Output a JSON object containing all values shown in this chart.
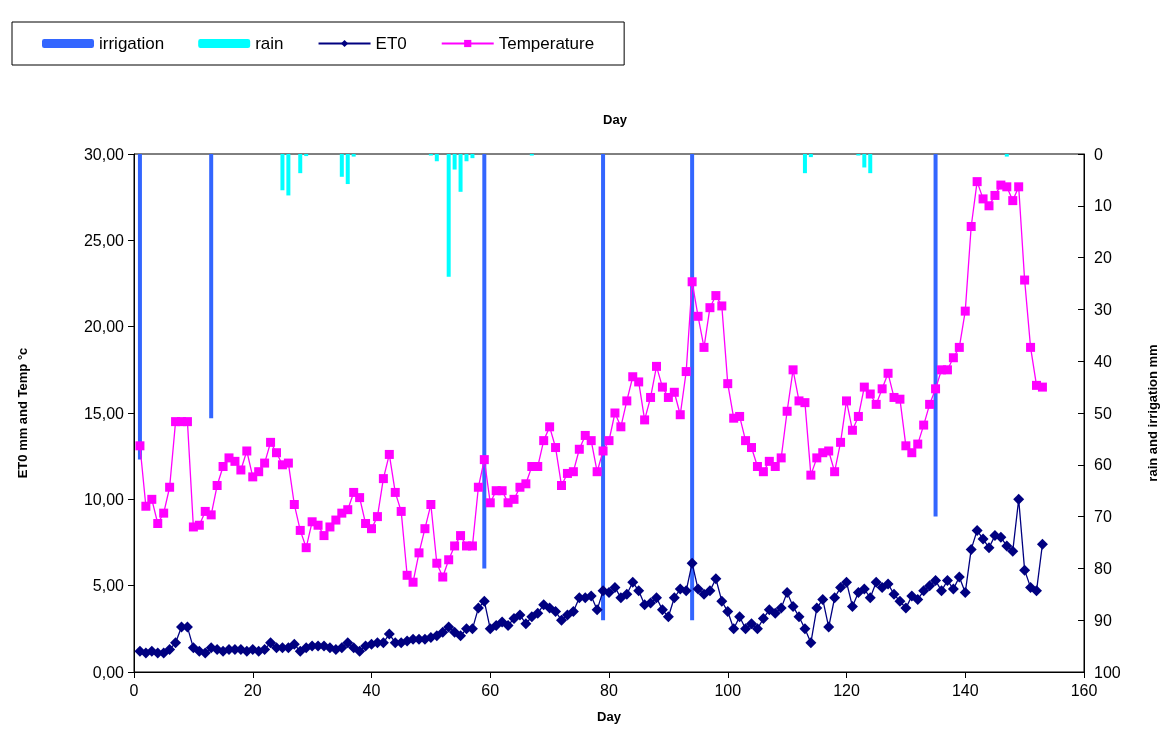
{
  "chart_data": {
    "type": "line",
    "title": "Day",
    "xlabel": "Day",
    "ylabel": "ET0 mm and Temp °c",
    "y2label": "rain and irrigation mm",
    "legend": "top left",
    "xlim": [
      0,
      160
    ],
    "xticks": [
      0,
      20,
      40,
      60,
      80,
      100,
      120,
      140,
      160
    ],
    "ylim": [
      0,
      30
    ],
    "yticks": [
      {
        "value": 0,
        "label": "0,00"
      },
      {
        "value": 5,
        "label": "5,00"
      },
      {
        "value": 10,
        "label": "10,00"
      },
      {
        "value": 15,
        "label": "15,00"
      },
      {
        "value": 20,
        "label": "20,00"
      },
      {
        "value": 25,
        "label": "25,00"
      },
      {
        "value": 30,
        "label": "30,00"
      }
    ],
    "y2lim": [
      100,
      0
    ],
    "y2ticks": [
      0,
      10,
      20,
      30,
      40,
      50,
      60,
      70,
      80,
      90,
      100
    ],
    "x": [
      1,
      2,
      3,
      4,
      5,
      6,
      7,
      8,
      9,
      10,
      11,
      12,
      13,
      14,
      15,
      16,
      17,
      18,
      19,
      20,
      21,
      22,
      23,
      24,
      25,
      26,
      27,
      28,
      29,
      30,
      31,
      32,
      33,
      34,
      35,
      36,
      37,
      38,
      39,
      40,
      41,
      42,
      43,
      44,
      45,
      46,
      47,
      48,
      49,
      50,
      51,
      52,
      53,
      54,
      55,
      56,
      57,
      58,
      59,
      60,
      61,
      62,
      63,
      64,
      65,
      66,
      67,
      68,
      69,
      70,
      71,
      72,
      73,
      74,
      75,
      76,
      77,
      78,
      79,
      80,
      81,
      82,
      83,
      84,
      85,
      86,
      87,
      88,
      89,
      90,
      91,
      92,
      93,
      94,
      95,
      96,
      97,
      98,
      99,
      100,
      101,
      102,
      103,
      104,
      105,
      106,
      107,
      108,
      109,
      110,
      111,
      112,
      113,
      114,
      115,
      116,
      117,
      118,
      119,
      120,
      121,
      122,
      123,
      124,
      125,
      126,
      127,
      128,
      129,
      130,
      131,
      132,
      133,
      134,
      135,
      136,
      137,
      138,
      139,
      140,
      141,
      142,
      143,
      144,
      145,
      146,
      147,
      148,
      149,
      150,
      151,
      152,
      153
    ],
    "series": [
      {
        "name": "irrigation",
        "type": "bar",
        "axis": "y2",
        "color": "#3366ff",
        "x": [
          1,
          13,
          59,
          79,
          94,
          135
        ],
        "values": [
          59,
          51,
          80,
          90,
          90,
          70
        ]
      },
      {
        "name": "rain",
        "type": "bar",
        "axis": "y2",
        "color": "#00ffff",
        "x": [
          25,
          26,
          28,
          29,
          35,
          36,
          37,
          50,
          51,
          53,
          54,
          55,
          56,
          57,
          67,
          113,
          114,
          122,
          123,
          124,
          147
        ],
        "values": [
          7,
          8,
          3.7,
          0.4,
          4.4,
          5.8,
          0.5,
          0.3,
          1.4,
          23.7,
          3,
          7.3,
          1.4,
          0.8,
          0.3,
          3.7,
          0.6,
          0.3,
          2.6,
          3.7,
          0.5
        ]
      },
      {
        "name": "ET0",
        "color": "#000080",
        "marker": "diamond",
        "values": [
          1.2,
          1.1,
          1.2,
          1.1,
          1.1,
          1.3,
          1.7,
          2.6,
          2.6,
          1.4,
          1.2,
          1.1,
          1.4,
          1.3,
          1.2,
          1.3,
          1.3,
          1.3,
          1.2,
          1.3,
          1.2,
          1.3,
          1.7,
          1.4,
          1.4,
          1.4,
          1.6,
          1.2,
          1.4,
          1.5,
          1.5,
          1.5,
          1.4,
          1.3,
          1.4,
          1.7,
          1.4,
          1.2,
          1.5,
          1.6,
          1.7,
          1.7,
          2.2,
          1.7,
          1.7,
          1.8,
          1.9,
          1.9,
          1.9,
          2.0,
          2.1,
          2.3,
          2.6,
          2.3,
          2.1,
          2.5,
          2.5,
          3.7,
          4.1,
          2.5,
          2.7,
          2.9,
          2.7,
          3.1,
          3.3,
          2.8,
          3.2,
          3.4,
          3.9,
          3.7,
          3.5,
          3.0,
          3.3,
          3.5,
          4.3,
          4.3,
          4.4,
          3.6,
          4.7,
          4.6,
          4.9,
          4.3,
          4.5,
          5.2,
          4.7,
          3.9,
          4.0,
          4.3,
          3.6,
          3.2,
          4.3,
          4.8,
          4.7,
          6.3,
          4.8,
          4.5,
          4.7,
          5.4,
          4.1,
          3.5,
          2.5,
          3.2,
          2.5,
          2.8,
          2.5,
          3.1,
          3.6,
          3.4,
          3.7,
          4.6,
          3.8,
          3.2,
          2.5,
          1.7,
          3.7,
          4.2,
          2.6,
          4.3,
          4.9,
          5.2,
          3.8,
          4.6,
          4.8,
          4.3,
          5.2,
          4.9,
          5.1,
          4.5,
          4.1,
          3.7,
          4.4,
          4.2,
          4.7,
          5.0,
          5.3,
          4.7,
          5.3,
          4.8,
          5.5,
          4.6,
          7.1,
          8.2,
          7.7,
          7.2,
          7.9,
          7.8,
          7.3,
          7.0,
          10.0,
          5.9,
          4.9,
          4.7,
          7.4
        ]
      },
      {
        "name": "Temperature",
        "color": "#ff00ff",
        "marker": "square",
        "values": [
          13.1,
          9.6,
          10.0,
          8.6,
          9.2,
          10.7,
          14.5,
          14.5,
          14.5,
          8.4,
          8.5,
          9.3,
          9.1,
          10.8,
          11.9,
          12.4,
          12.2,
          11.7,
          12.8,
          11.3,
          11.6,
          12.1,
          13.3,
          12.7,
          12.0,
          12.1,
          9.7,
          8.2,
          7.2,
          8.7,
          8.5,
          7.9,
          8.4,
          8.8,
          9.2,
          9.4,
          10.4,
          10.1,
          8.6,
          8.3,
          9.0,
          11.2,
          12.6,
          10.4,
          9.3,
          5.6,
          5.2,
          6.9,
          8.3,
          9.7,
          6.3,
          5.5,
          6.5,
          7.3,
          7.9,
          7.3,
          7.3,
          10.7,
          12.3,
          9.8,
          10.5,
          10.5,
          9.8,
          10.0,
          10.7,
          10.9,
          11.9,
          11.9,
          13.4,
          14.2,
          13.0,
          10.8,
          11.5,
          11.6,
          12.9,
          13.7,
          13.4,
          11.6,
          12.8,
          13.4,
          15.0,
          14.2,
          15.7,
          17.1,
          16.8,
          14.6,
          15.9,
          17.7,
          16.5,
          15.9,
          16.2,
          14.9,
          17.4,
          22.6,
          20.6,
          18.8,
          21.1,
          21.8,
          21.2,
          16.7,
          14.7,
          14.8,
          13.4,
          13.0,
          11.9,
          11.6,
          12.2,
          11.9,
          12.4,
          15.1,
          17.5,
          15.7,
          15.6,
          11.4,
          12.4,
          12.7,
          12.8,
          11.6,
          13.3,
          15.7,
          14.0,
          14.8,
          16.5,
          16.1,
          15.5,
          16.4,
          17.3,
          15.9,
          15.8,
          13.1,
          12.7,
          13.2,
          14.3,
          15.5,
          16.4,
          17.5,
          17.5,
          18.2,
          18.8,
          20.9,
          25.8,
          28.4,
          27.4,
          27.0,
          27.6,
          28.2,
          28.1,
          27.3,
          28.1,
          22.7,
          18.8,
          16.6,
          16.5
        ]
      }
    ]
  }
}
